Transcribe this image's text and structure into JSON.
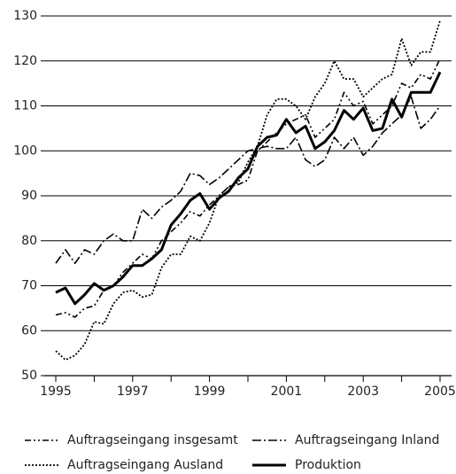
{
  "chart_data": {
    "type": "line",
    "x": [
      1995,
      1995.25,
      1995.5,
      1995.75,
      1996,
      1996.25,
      1996.5,
      1996.75,
      1997,
      1997.25,
      1997.5,
      1997.75,
      1998,
      1998.25,
      1998.5,
      1998.75,
      1999,
      1999.25,
      1999.5,
      1999.75,
      2000,
      2000.25,
      2000.5,
      2000.75,
      2001,
      2001.25,
      2001.5,
      2001.75,
      2002,
      2002.25,
      2002.5,
      2002.75,
      2003,
      2003.25,
      2003.5,
      2003.75,
      2004,
      2004.25,
      2004.5,
      2004.75,
      2005
    ],
    "series": [
      {
        "name": "Auftragseingang insgesamt",
        "color": "#000000",
        "dash": "7 3 2 3 2 3",
        "width": 1.6,
        "values": [
          63.5,
          64,
          63,
          65,
          65.5,
          69,
          70,
          73,
          75,
          77,
          76,
          80,
          82,
          84,
          86.5,
          85.5,
          88,
          90,
          92,
          92.5,
          93.5,
          100,
          102,
          104,
          106,
          107,
          108,
          103,
          105,
          107,
          113,
          110,
          111,
          106,
          108,
          110,
          115,
          114,
          117,
          116,
          120.5
        ]
      },
      {
        "name": "Auftragseingang Inland",
        "color": "#000000",
        "dash": "10 3 2 3",
        "width": 1.6,
        "values": [
          75,
          78,
          75,
          78,
          77,
          80,
          81.5,
          80,
          80,
          87,
          85,
          87.5,
          89,
          91,
          95,
          94.5,
          92.5,
          94,
          96,
          98,
          100,
          100.5,
          101,
          100.5,
          100.5,
          103,
          98,
          96.5,
          98,
          103,
          100.5,
          103,
          99,
          101,
          104,
          106,
          108,
          112,
          105,
          107,
          110
        ]
      },
      {
        "name": "Auftragseingang Ausland",
        "color": "#000000",
        "dash": "2 2",
        "width": 1.8,
        "values": [
          55.5,
          53.5,
          54.5,
          57,
          62,
          61.5,
          66,
          68.5,
          69,
          67.5,
          68,
          74,
          77,
          77,
          81,
          80,
          84,
          90,
          92,
          93,
          97.5,
          101,
          108,
          111.5,
          111.5,
          110,
          107,
          112,
          115,
          120,
          116,
          116,
          112,
          114,
          116,
          117,
          125,
          119,
          122,
          122,
          129
        ]
      },
      {
        "name": "Produktion",
        "color": "#000000",
        "dash": "none",
        "width": 3,
        "values": [
          68.5,
          69.5,
          66,
          68,
          70.5,
          69,
          70,
          72,
          74.5,
          74.5,
          76,
          78,
          83.5,
          86,
          89,
          90.5,
          87,
          89.5,
          91,
          94,
          96,
          101,
          103,
          103.5,
          107,
          104,
          105.5,
          100.5,
          102,
          104.5,
          109,
          107,
          109.5,
          104.5,
          105,
          111.5,
          107.5,
          113,
          113,
          113,
          117.5
        ]
      }
    ],
    "xlim": [
      1994.7,
      2005.3
    ],
    "xticks": [
      1995,
      1997,
      1999,
      2001,
      2003,
      2005
    ],
    "xminor_ticks": [
      1996,
      1998,
      2000,
      2002,
      2004
    ],
    "ylim": [
      50,
      130
    ],
    "yticks": [
      50,
      60,
      70,
      80,
      90,
      100,
      110,
      120,
      130
    ],
    "grid": true,
    "legend": "bottom"
  }
}
